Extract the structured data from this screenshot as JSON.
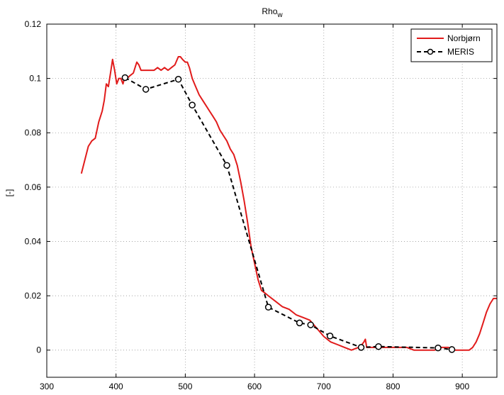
{
  "chart_data": {
    "type": "line",
    "title": "Rho",
    "title_subscript": "w",
    "xlabel": "",
    "ylabel": "[-]",
    "xlim": [
      300,
      950
    ],
    "ylim": [
      -0.01,
      0.12
    ],
    "x_ticks": [
      300,
      400,
      500,
      600,
      700,
      800,
      900
    ],
    "y_ticks": [
      0,
      0.02,
      0.04,
      0.06,
      0.08,
      0.1,
      0.12
    ],
    "x_tick_labels": [
      "300",
      "400",
      "500",
      "600",
      "700",
      "800",
      "900"
    ],
    "y_tick_labels": [
      "0",
      "0.02",
      "0.04",
      "0.06",
      "0.08",
      "0.1",
      "0.12"
    ],
    "grid": true,
    "legend_position": "top-right",
    "series": [
      {
        "name": "Norbjørn",
        "color": "#e11b1b",
        "style": "solid",
        "marker": "none",
        "x": [
          350,
          355,
          360,
          365,
          370,
          375,
          380,
          383,
          386,
          389,
          392,
          395,
          398,
          401,
          404,
          407,
          410,
          413,
          416,
          420,
          425,
          430,
          433,
          436,
          440,
          445,
          450,
          455,
          460,
          465,
          470,
          475,
          480,
          485,
          490,
          493,
          496,
          500,
          503,
          506,
          510,
          515,
          520,
          525,
          530,
          535,
          540,
          545,
          550,
          555,
          560,
          565,
          570,
          575,
          580,
          585,
          590,
          595,
          600,
          605,
          610,
          615,
          620,
          630,
          640,
          650,
          660,
          670,
          680,
          690,
          700,
          710,
          720,
          730,
          740,
          750,
          755,
          758,
          760,
          762,
          765,
          770,
          780,
          790,
          800,
          810,
          820,
          830,
          840,
          850,
          860,
          870,
          880,
          890,
          900,
          910,
          915,
          920,
          925,
          930,
          935,
          940,
          945,
          950
        ],
        "values": [
          0.065,
          0.07,
          0.075,
          0.077,
          0.078,
          0.084,
          0.088,
          0.092,
          0.098,
          0.097,
          0.102,
          0.107,
          0.103,
          0.098,
          0.1,
          0.1,
          0.098,
          0.101,
          0.1,
          0.101,
          0.102,
          0.106,
          0.105,
          0.103,
          0.103,
          0.103,
          0.103,
          0.103,
          0.104,
          0.103,
          0.104,
          0.103,
          0.104,
          0.105,
          0.108,
          0.108,
          0.107,
          0.106,
          0.106,
          0.104,
          0.1,
          0.097,
          0.094,
          0.092,
          0.09,
          0.088,
          0.086,
          0.084,
          0.081,
          0.079,
          0.077,
          0.074,
          0.072,
          0.068,
          0.062,
          0.055,
          0.047,
          0.038,
          0.032,
          0.026,
          0.022,
          0.021,
          0.02,
          0.018,
          0.016,
          0.015,
          0.013,
          0.012,
          0.011,
          0.008,
          0.005,
          0.003,
          0.002,
          0.001,
          0.0,
          0.001,
          0.002,
          0.003,
          0.004,
          0.001,
          0.001,
          0.001,
          0.001,
          0.001,
          0.001,
          0.001,
          0.001,
          0.0,
          0.0,
          0.0,
          0.0,
          0.001,
          0.001,
          0.0,
          0.0,
          0.0,
          0.001,
          0.003,
          0.006,
          0.01,
          0.014,
          0.017,
          0.019,
          0.019
        ]
      },
      {
        "name": "MERIS",
        "color": "#000000",
        "style": "dashed",
        "marker": "circle",
        "x": [
          413,
          443,
          490,
          510,
          560,
          620,
          665,
          681,
          709,
          754,
          779,
          865,
          885
        ],
        "values": [
          0.1003,
          0.096,
          0.0997,
          0.0902,
          0.068,
          0.0158,
          0.01,
          0.0093,
          0.0052,
          0.001,
          0.0013,
          0.0008,
          0.0002
        ]
      }
    ]
  }
}
